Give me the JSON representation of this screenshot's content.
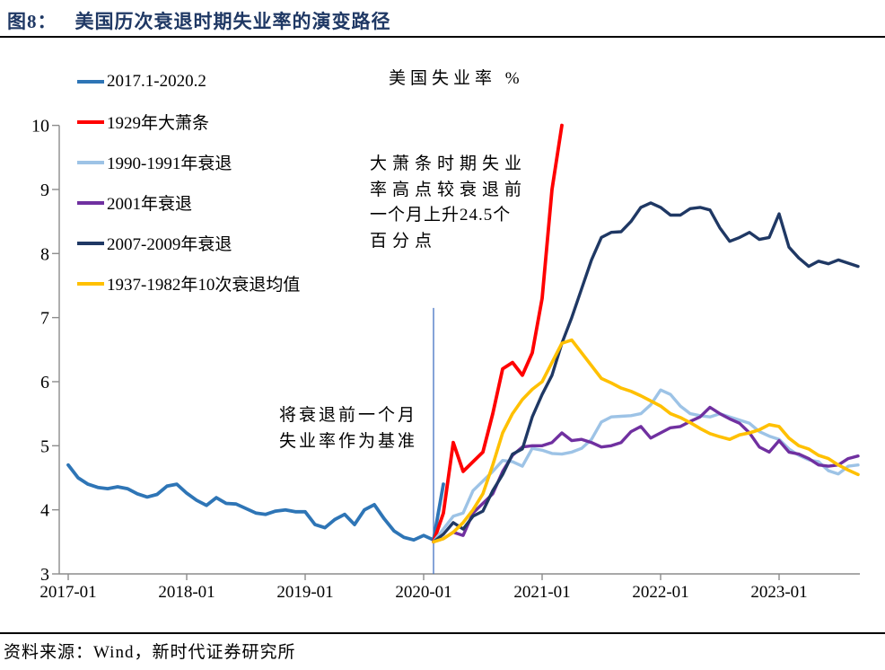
{
  "header": {
    "figure_label": "图8：",
    "title": "美国历次衰退时期失业率的演变路径",
    "title_color": "#1F3864"
  },
  "footer": {
    "source": "资料来源：Wind，新时代证券研究所"
  },
  "chart_data": {
    "type": "line",
    "title": "美国失业率 %",
    "grid": false,
    "legend_position": "upper-left-vertical",
    "x_axis": {
      "tick_labels": [
        "2017-01",
        "2018-01",
        "2019-01",
        "2020-01",
        "2021-01",
        "2022-01",
        "2023-01"
      ],
      "tick_month_index": [
        0,
        12,
        24,
        36,
        48,
        60,
        72
      ],
      "unit": "months from 2017-01"
    },
    "y_axis": {
      "min": 3,
      "max": 10,
      "tick_labels": [
        "3",
        "4",
        "5",
        "6",
        "7",
        "8",
        "9",
        "10"
      ]
    },
    "baseline_marker": {
      "month_index": 37,
      "date": "2020-02",
      "value_from": 3.0,
      "value_to": 7.15,
      "color": "#4472C4"
    },
    "annotations": [
      {
        "id": "depression-note",
        "lines": [
          "大萧条时期失业",
          "率高点较衰退前",
          "一个月上升24.5个",
          "百分点"
        ]
      },
      {
        "id": "baseline-note",
        "lines": [
          "将衰退前一个月",
          "失业率作为基准"
        ]
      }
    ],
    "series": [
      {
        "name": "2017.1-2020.2",
        "color": "#2E75B6",
        "stroke_width": 3.8,
        "start_month_index": 0,
        "values": [
          4.7,
          4.5,
          4.4,
          4.35,
          4.33,
          4.36,
          4.33,
          4.25,
          4.2,
          4.24,
          4.37,
          4.4,
          4.26,
          4.15,
          4.07,
          4.19,
          4.1,
          4.09,
          4.02,
          3.95,
          3.93,
          3.98,
          4.0,
          3.97,
          3.97,
          3.77,
          3.72,
          3.85,
          3.93,
          3.77,
          4.0,
          4.08,
          3.86,
          3.67,
          3.57,
          3.53,
          3.6,
          3.53,
          4.4
        ]
      },
      {
        "name": "1929年大萧条",
        "color": "#FF0000",
        "stroke_width": 3.8,
        "start_month_index": 37,
        "values": [
          3.5,
          3.95,
          5.05,
          4.6,
          4.75,
          4.9,
          5.5,
          6.2,
          6.3,
          6.1,
          6.45,
          7.3,
          9.0,
          10.0
        ]
      },
      {
        "name": "1990-1991年衰退",
        "color": "#9DC3E6",
        "stroke_width": 3.4,
        "start_month_index": 37,
        "values": [
          3.5,
          3.7,
          3.9,
          3.95,
          4.3,
          4.45,
          4.6,
          4.77,
          4.75,
          4.68,
          4.96,
          4.93,
          4.88,
          4.87,
          4.9,
          4.96,
          5.1,
          5.37,
          5.45,
          5.46,
          5.47,
          5.5,
          5.64,
          5.87,
          5.8,
          5.62,
          5.5,
          5.47,
          5.45,
          5.5,
          5.45,
          5.4,
          5.35,
          5.22,
          5.15,
          5.1,
          4.95,
          4.85,
          4.78,
          4.75,
          4.61,
          4.56,
          4.68,
          4.7
        ]
      },
      {
        "name": "2001年衰退",
        "color": "#7030A0",
        "stroke_width": 3.4,
        "start_month_index": 37,
        "values": [
          3.5,
          3.55,
          3.65,
          3.6,
          3.95,
          4.1,
          4.25,
          4.6,
          4.85,
          4.98,
          5.0,
          5.0,
          5.05,
          5.2,
          5.08,
          5.1,
          5.05,
          4.98,
          5.0,
          5.05,
          5.22,
          5.3,
          5.12,
          5.2,
          5.28,
          5.3,
          5.38,
          5.45,
          5.6,
          5.5,
          5.42,
          5.35,
          5.2,
          4.98,
          4.9,
          5.08,
          4.9,
          4.87,
          4.8,
          4.7,
          4.68,
          4.7,
          4.8,
          4.84
        ]
      },
      {
        "name": "2007-2009年衰退",
        "color": "#1F3864",
        "stroke_width": 3.4,
        "start_month_index": 37,
        "values": [
          3.5,
          3.62,
          3.8,
          3.7,
          3.9,
          3.98,
          4.3,
          4.55,
          4.87,
          4.95,
          5.45,
          5.8,
          6.1,
          6.6,
          7.0,
          7.45,
          7.9,
          8.25,
          8.33,
          8.34,
          8.5,
          8.72,
          8.79,
          8.72,
          8.6,
          8.6,
          8.7,
          8.72,
          8.68,
          8.4,
          8.19,
          8.25,
          8.33,
          8.22,
          8.25,
          8.62,
          8.1,
          7.93,
          7.8,
          7.88,
          7.84,
          7.9,
          7.85,
          7.8
        ]
      },
      {
        "name": "1937-1982年10次衰退均值",
        "color": "#FFC000",
        "stroke_width": 3.6,
        "start_month_index": 37,
        "values": [
          3.5,
          3.55,
          3.65,
          3.8,
          4.0,
          4.25,
          4.7,
          5.2,
          5.5,
          5.72,
          5.88,
          6.0,
          6.3,
          6.6,
          6.65,
          6.45,
          6.25,
          6.05,
          5.98,
          5.9,
          5.85,
          5.78,
          5.7,
          5.62,
          5.5,
          5.44,
          5.36,
          5.27,
          5.19,
          5.14,
          5.1,
          5.17,
          5.2,
          5.25,
          5.33,
          5.3,
          5.12,
          5.0,
          4.95,
          4.85,
          4.8,
          4.7,
          4.62,
          4.55
        ]
      }
    ],
    "axis_color": "#8C8C8C"
  }
}
